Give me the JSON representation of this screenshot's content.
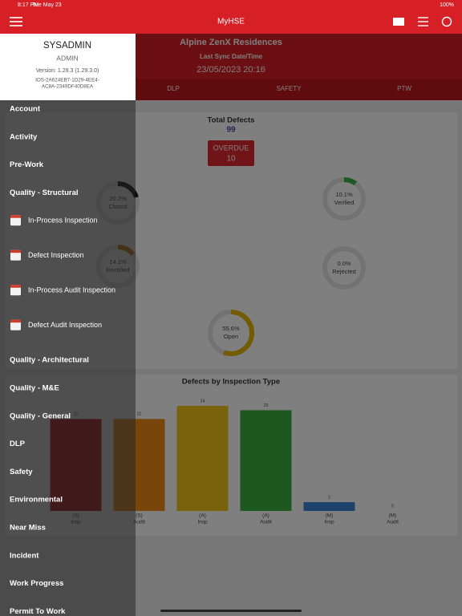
{
  "status_bar": {
    "time": "8:17 PM",
    "date": "Tue May 23",
    "battery": "100%"
  },
  "header": {
    "title": "MyHSE"
  },
  "profile": {
    "name": "SYSADMIN",
    "role": "ADMIN",
    "version": "Version: 1.29.3 (1.29.3.0)",
    "device_id": [
      "IOS-2A624EB7-1D29-4EE4-",
      "AC8A-2349DF40D8EA"
    ]
  },
  "menu": {
    "items": [
      {
        "label": "Account"
      },
      {
        "label": "Activity"
      },
      {
        "label": "Pre-Work"
      },
      {
        "label": "Quality - Structural"
      },
      {
        "label": "In-Process Inspection",
        "sub": true
      },
      {
        "label": "Defect Inspection",
        "sub": true
      },
      {
        "label": "In-Process Audit Inspection",
        "sub": true
      },
      {
        "label": "Defect Audit Inspection",
        "sub": true
      },
      {
        "label": "Quality - Architectural"
      },
      {
        "label": "Quality - M&E"
      },
      {
        "label": "Quality - General"
      },
      {
        "label": "DLP"
      },
      {
        "label": "Safety"
      },
      {
        "label": "Environmental"
      },
      {
        "label": "Near Miss"
      },
      {
        "label": "Incident"
      },
      {
        "label": "Work Progress"
      },
      {
        "label": "Permit To Work"
      }
    ]
  },
  "project": {
    "name": "Alpine ZenX Residences",
    "sync_label": "Last Sync Date/Time",
    "sync_value": "23/05/2023 20:16"
  },
  "tabs": [
    "DLP",
    "SAFETY",
    "PTW"
  ],
  "summary": {
    "total_label": "Total Defects",
    "total_value": 99,
    "overdue_label": "OVERDUE",
    "overdue_value": 10
  },
  "donuts": [
    {
      "label": "Closed",
      "value": 20.2,
      "value_label": "20.2%",
      "color": "#111111"
    },
    {
      "label": "Verified",
      "value": 10.1,
      "value_label": "10.1%",
      "color": "#3cb043"
    },
    {
      "label": "Rectified",
      "value": 14.1,
      "value_label": "14.1%",
      "color": "#c8820f"
    },
    {
      "label": "Rejected",
      "value": 0.0,
      "value_label": "0.0%",
      "color": "#bbbbbb"
    },
    {
      "label": "Open",
      "value": 55.6,
      "value_label": "55.6%",
      "color": "#e6b800"
    }
  ],
  "chart_data": {
    "type": "bar",
    "title": "Defects by Inspection Type",
    "categories": [
      [
        "(S)",
        "Insp"
      ],
      [
        "(S)",
        "Audit"
      ],
      [
        "(A)",
        "Insp"
      ],
      [
        "(A)",
        "Audit"
      ],
      [
        "(M)",
        "Insp"
      ],
      [
        "(M)",
        "Audit"
      ]
    ],
    "values": [
      21,
      21,
      24,
      23,
      2,
      0
    ],
    "colors": [
      "#c0181c",
      "#f08a14",
      "#f5c518",
      "#3cb043",
      "#3a85d6",
      "#999999"
    ]
  }
}
